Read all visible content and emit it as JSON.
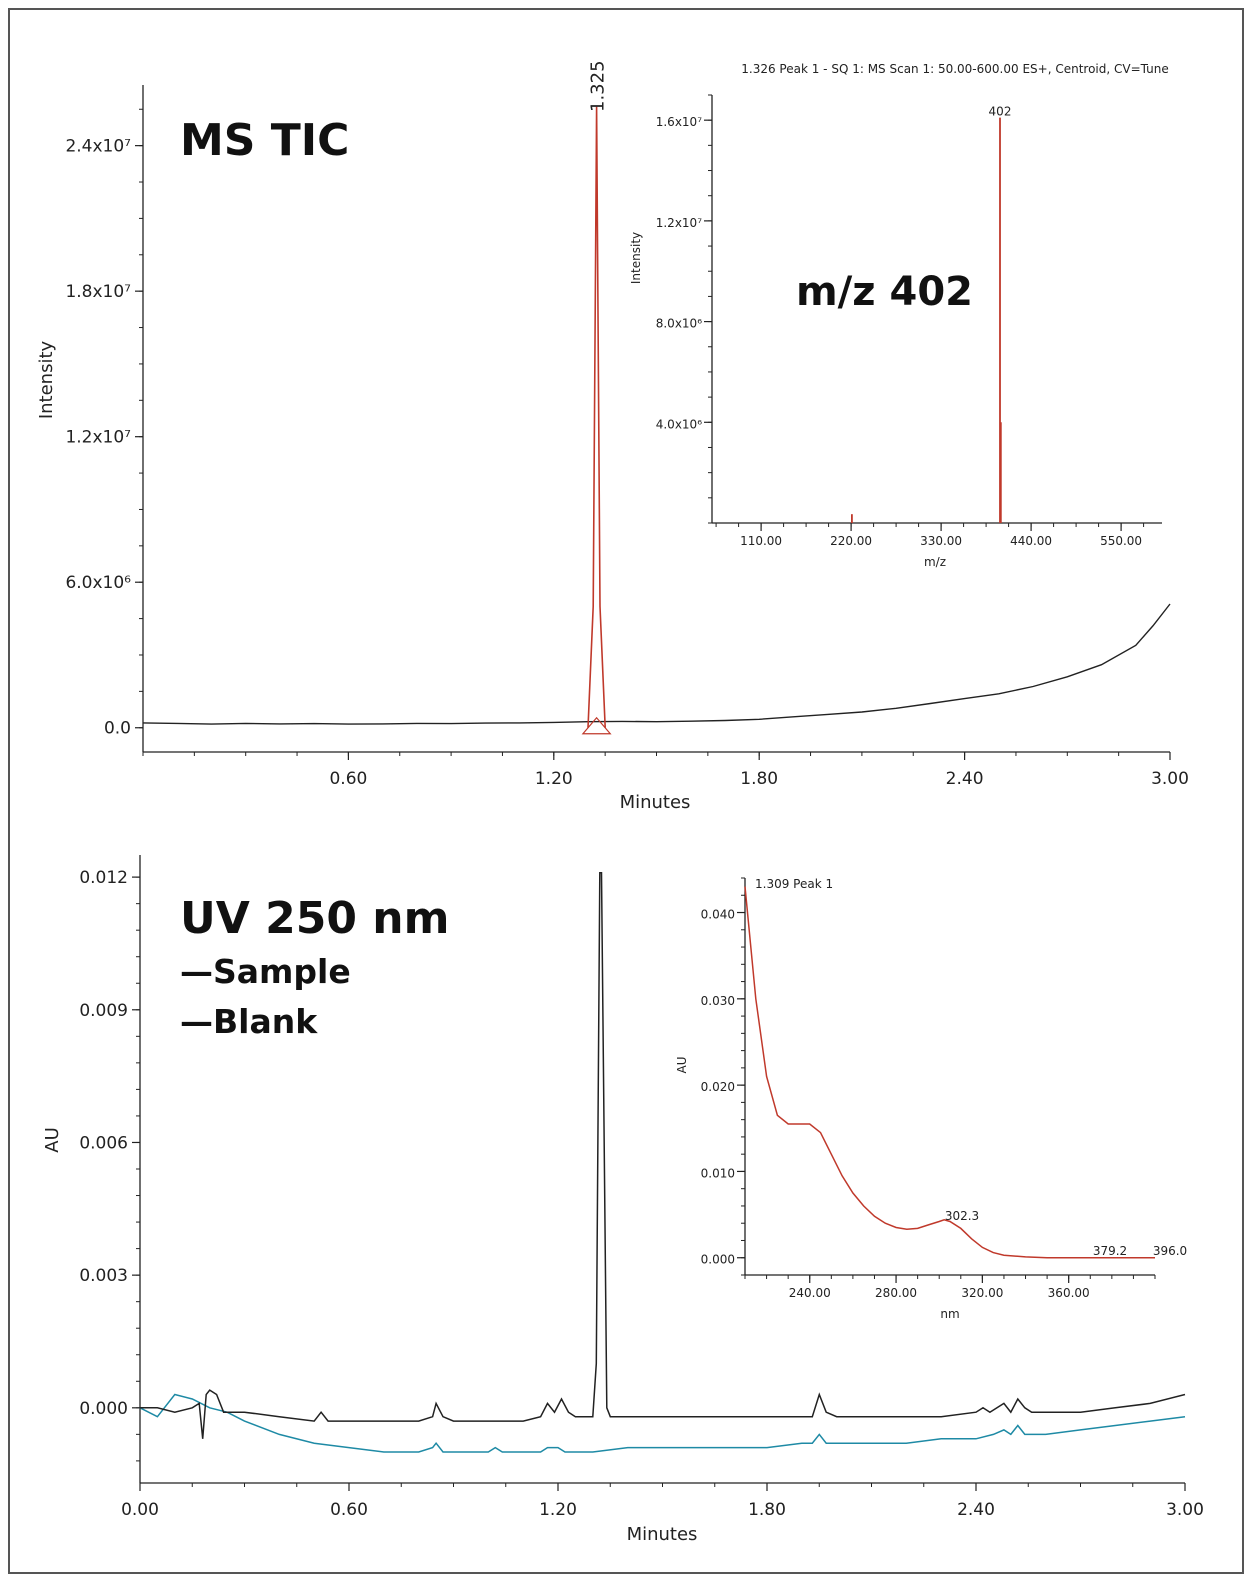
{
  "colors": {
    "sample": "#222222",
    "blank": "#1e8aa5",
    "ms_peak": "#c0392b",
    "spectrum": "#c0392b"
  },
  "chart_data": [
    {
      "id": "ms_tic",
      "type": "line",
      "title": "MS TIC",
      "xlabel": "Minutes",
      "ylabel": "Intensity",
      "xlim": [
        0.0,
        3.0
      ],
      "ylim": [
        -1000000,
        26500000
      ],
      "x_ticks": [
        "0.60",
        "1.20",
        "1.80",
        "2.40",
        "3.00"
      ],
      "y_ticks": [
        "0.0",
        "6.0x10⁶",
        "1.2x10⁷",
        "1.8x10⁷",
        "2.4x10⁷"
      ],
      "peak_label": "1.325",
      "series": [
        {
          "name": "",
          "x": [
            0.0,
            0.1,
            0.2,
            0.3,
            0.4,
            0.5,
            0.6,
            0.7,
            0.8,
            0.9,
            1.0,
            1.1,
            1.2,
            1.3,
            1.4,
            1.5,
            1.6,
            1.7,
            1.8,
            1.9,
            2.0,
            2.1,
            2.2,
            2.3,
            2.4,
            2.5,
            2.6,
            2.7,
            2.8,
            2.9,
            2.95,
            3.0
          ],
          "y": [
            200000,
            180000,
            150000,
            180000,
            160000,
            170000,
            150000,
            160000,
            180000,
            170000,
            190000,
            200000,
            220000,
            250000,
            260000,
            250000,
            270000,
            300000,
            350000,
            450000,
            550000,
            650000,
            800000,
            1000000,
            1200000,
            1400000,
            1700000,
            2100000,
            2600000,
            3400000,
            4200000,
            5100000
          ]
        },
        {
          "name": "",
          "x": [
            1.3,
            1.315,
            1.325,
            1.335,
            1.35
          ],
          "y": [
            0,
            5000000,
            25600000,
            5000000,
            0
          ]
        }
      ]
    },
    {
      "id": "ms_spectrum_inset",
      "type": "bar",
      "title": "1.326 Peak 1 - SQ 1: MS Scan 1: 50.00-600.00 ES+, Centroid, CV=Tune",
      "xlabel": "m/z",
      "ylabel": "Intensity",
      "annotation": "m/z 402",
      "peak_label": "402",
      "xlim": [
        50,
        600
      ],
      "ylim": [
        0,
        17000000
      ],
      "x_ticks": [
        "110.00",
        "220.00",
        "330.00",
        "440.00",
        "550.00"
      ],
      "y_ticks": [
        "4.0x10⁶",
        "8.0x10⁶",
        "1.2x10⁷",
        "1.6x10⁷"
      ],
      "x": [
        221,
        402,
        403
      ],
      "values": [
        350000,
        16100000,
        4000000
      ]
    },
    {
      "id": "uv_chromatogram",
      "type": "line",
      "title": "UV 250 nm",
      "xlabel": "Minutes",
      "ylabel": "AU",
      "xlim": [
        0.0,
        3.0
      ],
      "ylim": [
        -0.0017,
        0.0125
      ],
      "x_ticks": [
        "0.00",
        "0.60",
        "1.20",
        "1.80",
        "2.40",
        "3.00"
      ],
      "y_ticks": [
        "0.000",
        "0.003",
        "0.006",
        "0.009",
        "0.012"
      ],
      "legend": [
        "—Sample",
        "—Blank"
      ],
      "series": [
        {
          "name": "Sample",
          "x": [
            0.0,
            0.05,
            0.1,
            0.15,
            0.17,
            0.18,
            0.19,
            0.2,
            0.22,
            0.24,
            0.3,
            0.4,
            0.5,
            0.52,
            0.54,
            0.6,
            0.7,
            0.8,
            0.84,
            0.85,
            0.87,
            0.9,
            1.0,
            1.1,
            1.15,
            1.17,
            1.19,
            1.21,
            1.23,
            1.25,
            1.3,
            1.31,
            1.32,
            1.325,
            1.33,
            1.34,
            1.35,
            1.38,
            1.4,
            1.5,
            1.6,
            1.7,
            1.8,
            1.9,
            1.93,
            1.95,
            1.97,
            2.0,
            2.1,
            2.2,
            2.3,
            2.4,
            2.42,
            2.44,
            2.48,
            2.5,
            2.52,
            2.54,
            2.56,
            2.6,
            2.7,
            2.8,
            2.9,
            3.0
          ],
          "y": [
            0.0,
            0.0,
            -0.0001,
            0.0,
            0.0001,
            -0.0007,
            0.0003,
            0.0004,
            0.0003,
            -0.0001,
            -0.0001,
            -0.0002,
            -0.0003,
            -0.0001,
            -0.0003,
            -0.0003,
            -0.0003,
            -0.0003,
            -0.0002,
            0.0001,
            -0.0002,
            -0.0003,
            -0.0003,
            -0.0003,
            -0.0002,
            0.0001,
            -0.0001,
            0.0002,
            -0.0001,
            -0.0002,
            -0.0002,
            0.001,
            0.0121,
            0.0121,
            0.008,
            0.0,
            -0.0002,
            -0.0002,
            -0.0002,
            -0.0002,
            -0.0002,
            -0.0002,
            -0.0002,
            -0.0002,
            -0.0002,
            0.0003,
            -0.0001,
            -0.0002,
            -0.0002,
            -0.0002,
            -0.0002,
            -0.0001,
            0.0,
            -0.0001,
            0.0001,
            -0.0001,
            0.0002,
            0.0,
            -0.0001,
            -0.0001,
            -0.0001,
            0.0,
            0.0001,
            0.0003
          ]
        },
        {
          "name": "Blank",
          "x": [
            0.0,
            0.05,
            0.1,
            0.15,
            0.2,
            0.25,
            0.3,
            0.4,
            0.5,
            0.6,
            0.7,
            0.8,
            0.84,
            0.85,
            0.87,
            0.9,
            1.0,
            1.02,
            1.04,
            1.1,
            1.15,
            1.17,
            1.2,
            1.22,
            1.3,
            1.4,
            1.5,
            1.6,
            1.7,
            1.8,
            1.9,
            1.93,
            1.95,
            1.97,
            2.0,
            2.1,
            2.2,
            2.3,
            2.4,
            2.45,
            2.48,
            2.5,
            2.52,
            2.54,
            2.56,
            2.6,
            2.7,
            2.8,
            2.9,
            3.0
          ],
          "y": [
            0.0,
            -0.0002,
            0.0003,
            0.0002,
            0.0,
            -0.0001,
            -0.0003,
            -0.0006,
            -0.0008,
            -0.0009,
            -0.001,
            -0.001,
            -0.0009,
            -0.0008,
            -0.001,
            -0.001,
            -0.001,
            -0.0009,
            -0.001,
            -0.001,
            -0.001,
            -0.0009,
            -0.0009,
            -0.001,
            -0.001,
            -0.0009,
            -0.0009,
            -0.0009,
            -0.0009,
            -0.0009,
            -0.0008,
            -0.0008,
            -0.0006,
            -0.0008,
            -0.0008,
            -0.0008,
            -0.0008,
            -0.0007,
            -0.0007,
            -0.0006,
            -0.0005,
            -0.0006,
            -0.0004,
            -0.0006,
            -0.0006,
            -0.0006,
            -0.0005,
            -0.0004,
            -0.0003,
            -0.0002
          ]
        }
      ]
    },
    {
      "id": "uv_spectrum_inset",
      "type": "line",
      "title": "1.309 Peak 1",
      "xlabel": "nm",
      "ylabel": "AU",
      "xlim": [
        210,
        400
      ],
      "ylim": [
        -0.002,
        0.044
      ],
      "x_ticks": [
        "240.00",
        "280.00",
        "320.00",
        "360.00"
      ],
      "y_ticks": [
        "0.000",
        "0.010",
        "0.020",
        "0.030",
        "0.040"
      ],
      "annotations": [
        "302.3",
        "379.2",
        "396.0"
      ],
      "series": [
        {
          "name": "",
          "x": [
            210,
            215,
            220,
            225,
            230,
            235,
            240,
            245,
            250,
            255,
            260,
            265,
            270,
            275,
            280,
            285,
            290,
            295,
            300,
            302.3,
            305,
            310,
            315,
            320,
            325,
            330,
            340,
            350,
            360,
            370,
            379.2,
            390,
            396,
            400
          ],
          "y": [
            0.043,
            0.03,
            0.021,
            0.0165,
            0.0155,
            0.0155,
            0.0155,
            0.0145,
            0.012,
            0.0095,
            0.0075,
            0.006,
            0.0048,
            0.004,
            0.0035,
            0.0033,
            0.0034,
            0.0038,
            0.0042,
            0.0044,
            0.0042,
            0.0034,
            0.0022,
            0.0012,
            0.0006,
            0.0003,
            0.0001,
            0.0,
            0.0,
            0.0,
            0.0,
            0.0,
            0.0,
            0.0
          ]
        }
      ]
    }
  ]
}
